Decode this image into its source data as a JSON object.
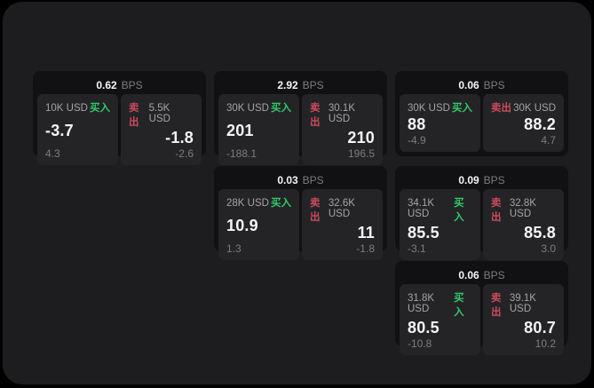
{
  "page": {
    "bg": "#000000",
    "surface_bg": "#1d1d1f",
    "card_bg": "#111113",
    "panel_bg": "#242427",
    "accent_green": "#32c96a",
    "accent_red": "#cc4a5c"
  },
  "labels": {
    "bps": "BPS",
    "buy": "买入",
    "sell": "卖出"
  },
  "cards": [
    {
      "spread": "0.62",
      "buy": {
        "size": "10K USD",
        "price": "-3.7",
        "delta": "4.3"
      },
      "sell": {
        "size": "5.5K USD",
        "price": "-1.8",
        "delta": "-2.6"
      }
    },
    {
      "spread": "2.92",
      "buy": {
        "size": "30K USD",
        "price": "201",
        "delta": "-188.1"
      },
      "sell": {
        "size": "30.1K USD",
        "price": "210",
        "delta": "196.5"
      }
    },
    {
      "spread": "0.06",
      "buy": {
        "size": "30K USD",
        "price": "88",
        "delta": "-4.9"
      },
      "sell": {
        "size": "30K USD",
        "price": "88.2",
        "delta": "4.7"
      }
    },
    {
      "spread": "0.03",
      "buy": {
        "size": "28K USD",
        "price": "10.9",
        "delta": "1.3"
      },
      "sell": {
        "size": "32.6K USD",
        "price": "11",
        "delta": "-1.8"
      }
    },
    {
      "spread": "0.09",
      "buy": {
        "size": "34.1K USD",
        "price": "85.5",
        "delta": "-3.1"
      },
      "sell": {
        "size": "32.8K USD",
        "price": "85.8",
        "delta": "3.0"
      }
    },
    {
      "spread": "0.06",
      "buy": {
        "size": "31.8K USD",
        "price": "80.5",
        "delta": "-10.8"
      },
      "sell": {
        "size": "39.1K USD",
        "price": "80.7",
        "delta": "10.2"
      }
    }
  ]
}
